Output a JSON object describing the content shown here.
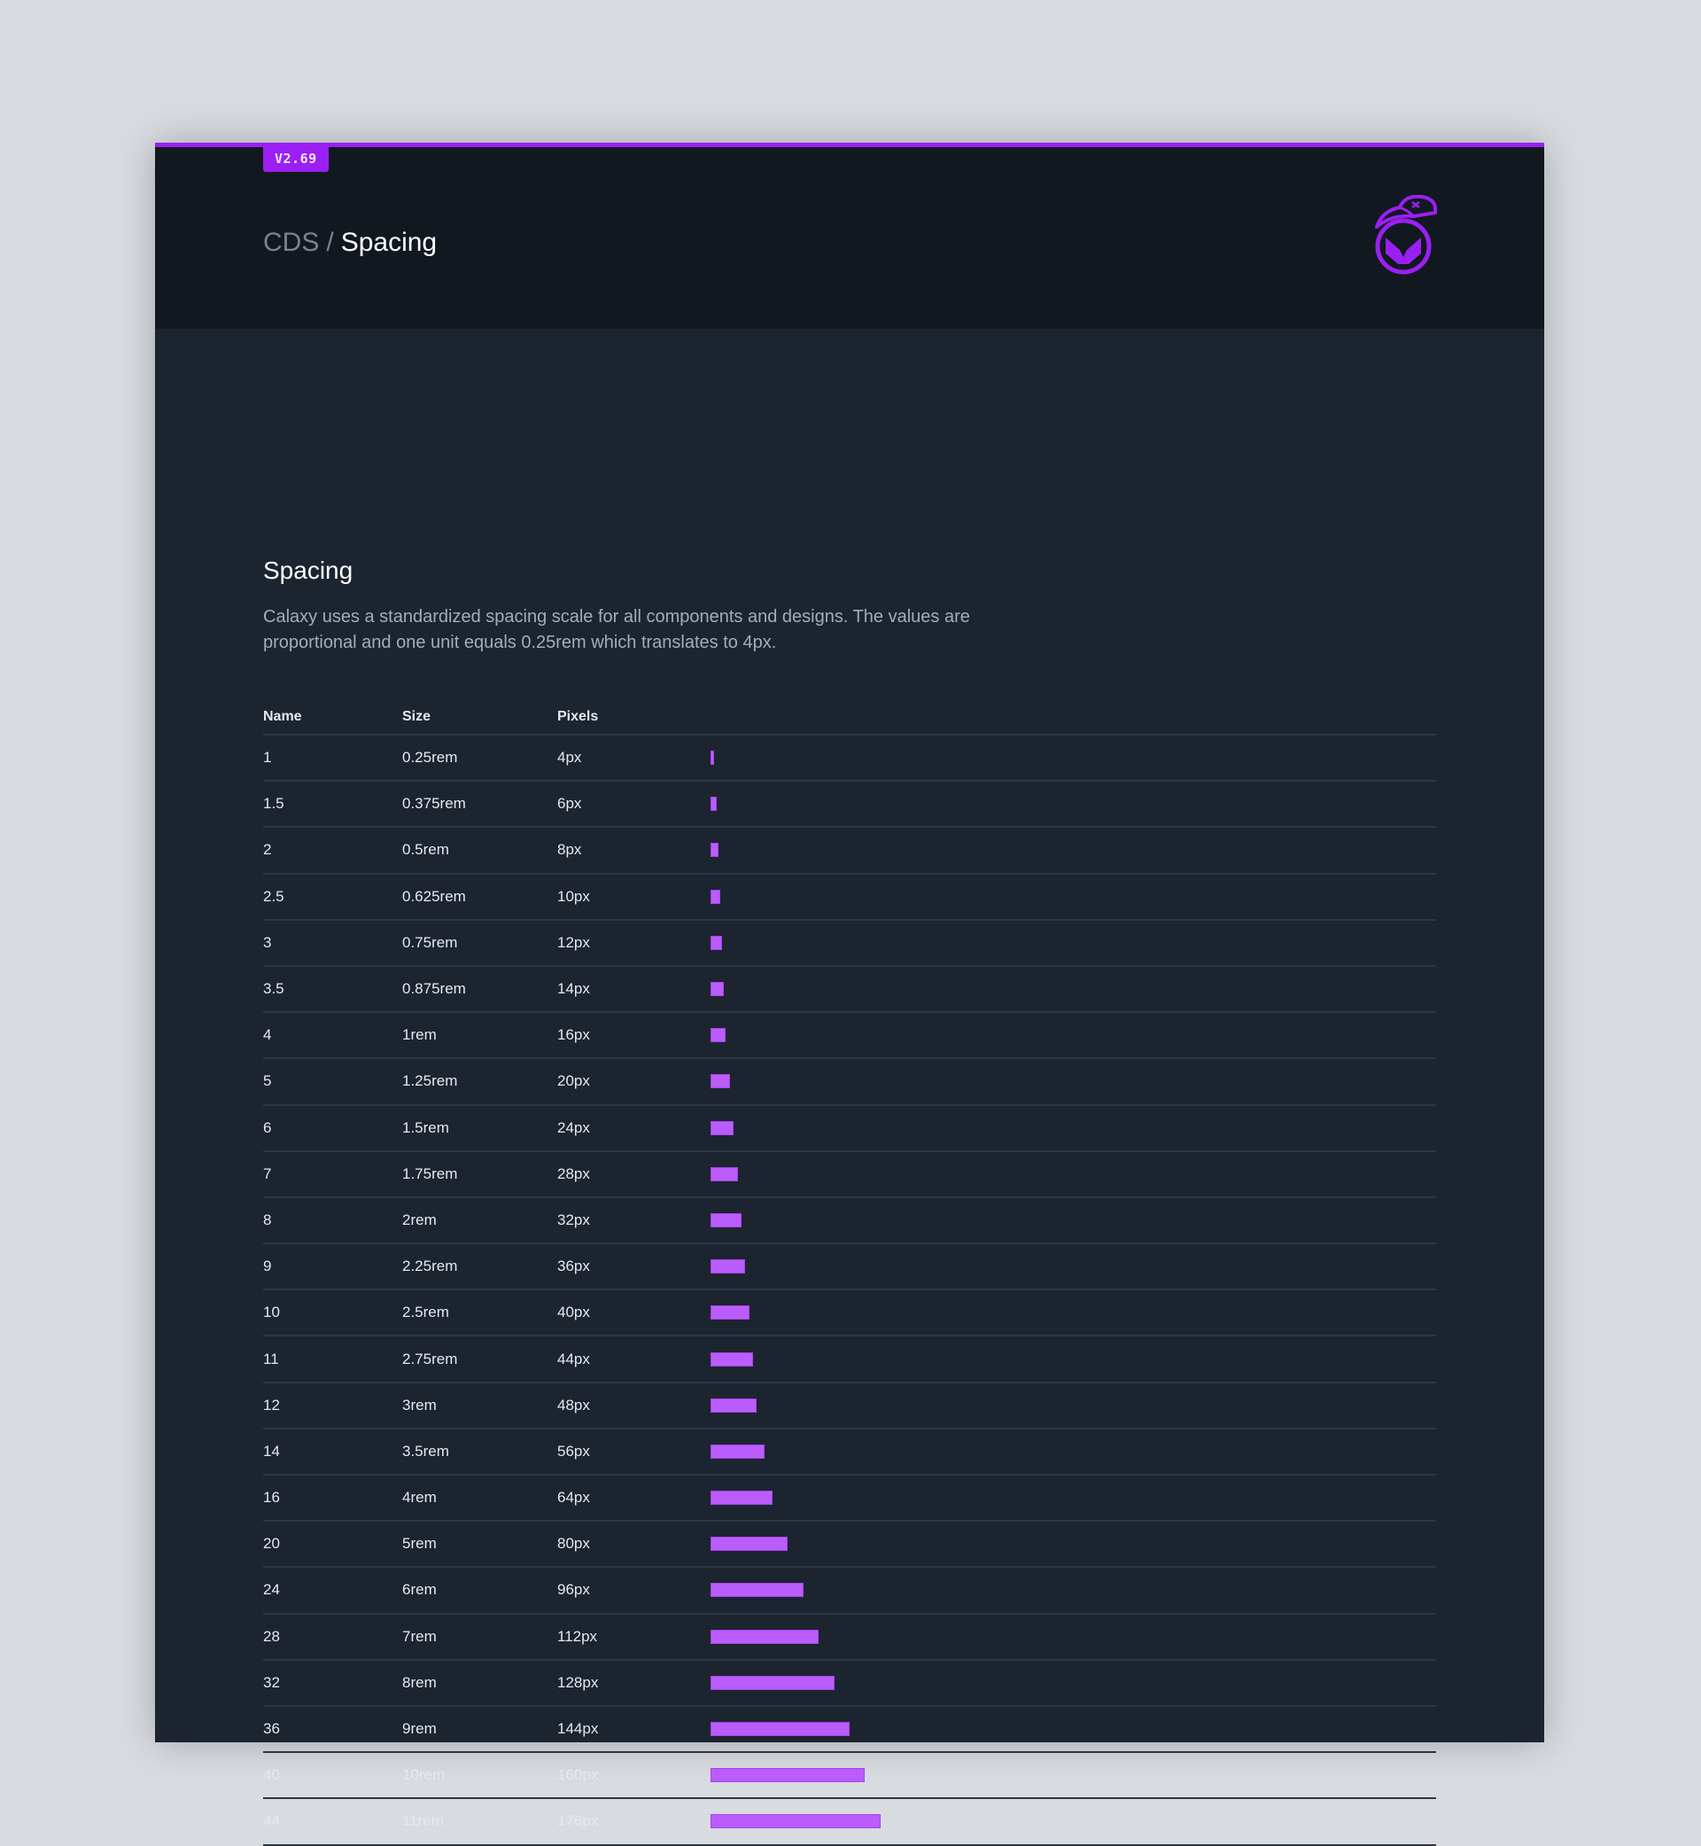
{
  "header": {
    "version_badge": "V2.69",
    "breadcrumb": {
      "root": "CDS",
      "separator": "/",
      "current": "Spacing"
    },
    "logo_icon": "capped-mascot-logo-icon"
  },
  "section": {
    "title": "Spacing",
    "description": "Calaxy uses a standardized spacing scale for all components and designs. The values are proportional and one unit equals 0.25rem which translates to 4px."
  },
  "colors": {
    "accent": "#9b1ff2",
    "bar": "#bb5cfd",
    "header_bg": "#121820",
    "body_bg": "#1c2430"
  },
  "table": {
    "columns": [
      "Name",
      "Size",
      "Pixels",
      ""
    ],
    "rows": [
      {
        "name": "1",
        "size": "0.25rem",
        "pixels": "4px",
        "px": 4
      },
      {
        "name": "1.5",
        "size": "0.375rem",
        "pixels": "6px",
        "px": 6
      },
      {
        "name": "2",
        "size": "0.5rem",
        "pixels": "8px",
        "px": 8
      },
      {
        "name": "2.5",
        "size": "0.625rem",
        "pixels": "10px",
        "px": 10
      },
      {
        "name": "3",
        "size": "0.75rem",
        "pixels": "12px",
        "px": 12
      },
      {
        "name": "3.5",
        "size": "0.875rem",
        "pixels": "14px",
        "px": 14
      },
      {
        "name": "4",
        "size": "1rem",
        "pixels": "16px",
        "px": 16
      },
      {
        "name": "5",
        "size": "1.25rem",
        "pixels": "20px",
        "px": 20
      },
      {
        "name": "6",
        "size": "1.5rem",
        "pixels": "24px",
        "px": 24
      },
      {
        "name": "7",
        "size": "1.75rem",
        "pixels": "28px",
        "px": 28
      },
      {
        "name": "8",
        "size": "2rem",
        "pixels": "32px",
        "px": 32
      },
      {
        "name": "9",
        "size": "2.25rem",
        "pixels": "36px",
        "px": 36
      },
      {
        "name": "10",
        "size": "2.5rem",
        "pixels": "40px",
        "px": 40
      },
      {
        "name": "11",
        "size": "2.75rem",
        "pixels": "44px",
        "px": 44
      },
      {
        "name": "12",
        "size": "3rem",
        "pixels": "48px",
        "px": 48
      },
      {
        "name": "14",
        "size": "3.5rem",
        "pixels": "56px",
        "px": 56
      },
      {
        "name": "16",
        "size": "4rem",
        "pixels": "64px",
        "px": 64
      },
      {
        "name": "20",
        "size": "5rem",
        "pixels": "80px",
        "px": 80
      },
      {
        "name": "24",
        "size": "6rem",
        "pixels": "96px",
        "px": 96
      },
      {
        "name": "28",
        "size": "7rem",
        "pixels": "112px",
        "px": 112
      },
      {
        "name": "32",
        "size": "8rem",
        "pixels": "128px",
        "px": 128
      },
      {
        "name": "36",
        "size": "9rem",
        "pixels": "144px",
        "px": 144
      },
      {
        "name": "40",
        "size": "10rem",
        "pixels": "160px",
        "px": 160
      },
      {
        "name": "44",
        "size": "11rem",
        "pixels": "176px",
        "px": 176
      }
    ]
  }
}
